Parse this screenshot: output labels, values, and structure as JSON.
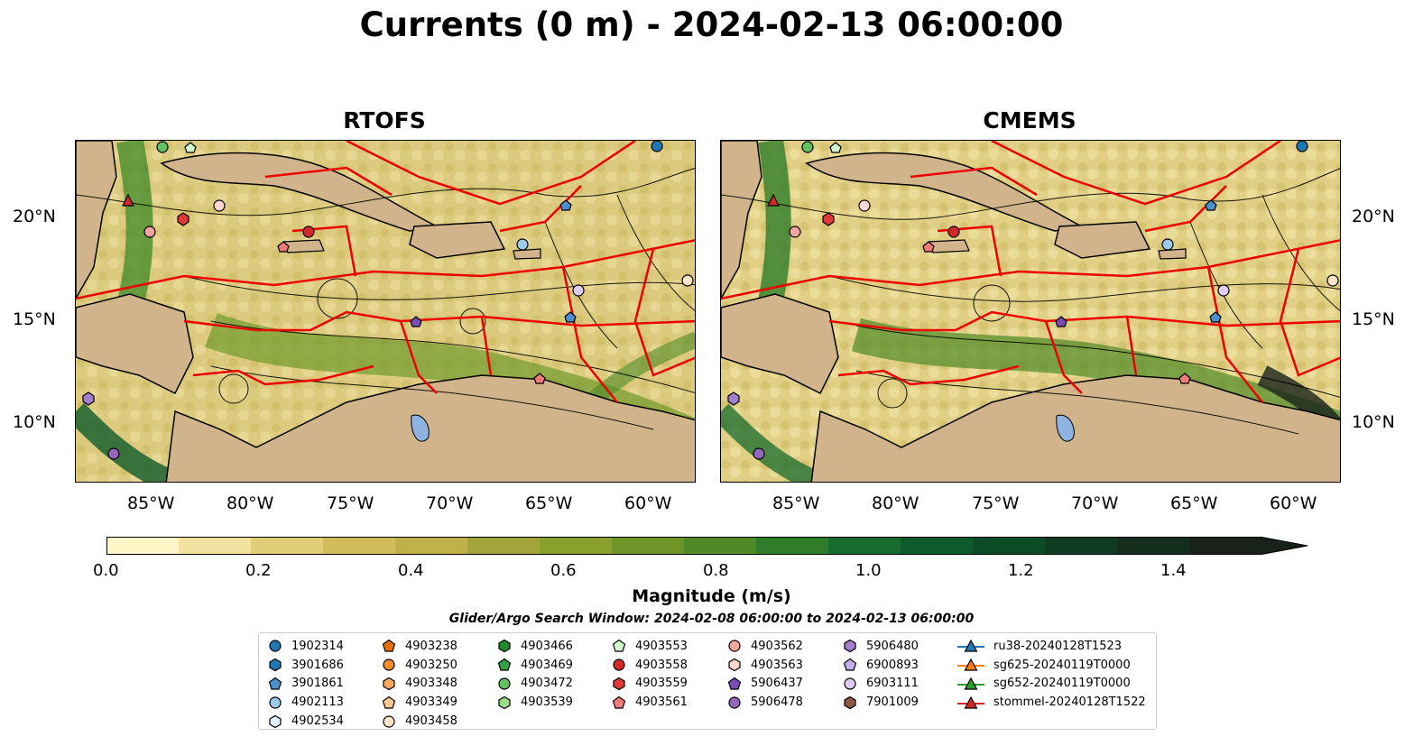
{
  "title": "Currents (0 m) - 2024-02-13 06:00:00",
  "panels": [
    {
      "title": "RTOFS"
    },
    {
      "title": "CMEMS"
    }
  ],
  "lat_labels": [
    "20°N",
    "15°N",
    "10°N"
  ],
  "lon_labels": [
    "85°W",
    "80°W",
    "75°W",
    "70°W",
    "65°W",
    "60°W"
  ],
  "colorbar": {
    "title": "Magnitude (m/s)",
    "tick_labels": [
      "0.0",
      "0.2",
      "0.4",
      "0.6",
      "0.8",
      "1.0",
      "1.2",
      "1.4"
    ],
    "colors": [
      "#fff8c6",
      "#f3e2a0",
      "#e1cc78",
      "#d2bb5a",
      "#bfb04a",
      "#a3a43a",
      "#89a02c",
      "#6f9428",
      "#4f8a26",
      "#2f7d2a",
      "#176b2c",
      "#0f5a2a",
      "#0d4a26",
      "#103c22",
      "#142e1c",
      "#18221a"
    ],
    "range": [
      0,
      1.6
    ]
  },
  "search_window": "Glider/Argo Search Window: 2024-02-08 06:00:00 to 2024-02-13 06:00:00",
  "legend": [
    [
      {
        "label": "1902314",
        "marker": "circle",
        "color": "#1f77b4"
      },
      {
        "label": "3901686",
        "marker": "hexagon",
        "color": "#1f77b4"
      },
      {
        "label": "3901861",
        "marker": "pentagon",
        "color": "#4c8fcf"
      },
      {
        "label": "4902113",
        "marker": "circle",
        "color": "#9ecae9"
      },
      {
        "label": "4902534",
        "marker": "hexagon",
        "color": "#e6f1fb"
      }
    ],
    [
      {
        "label": "4903238",
        "marker": "pentagon",
        "color": "#e6700b"
      },
      {
        "label": "4903250",
        "marker": "circle",
        "color": "#f28c2c"
      },
      {
        "label": "4903348",
        "marker": "hexagon",
        "color": "#f8a95a"
      },
      {
        "label": "4903349",
        "marker": "pentagon",
        "color": "#fcc890"
      },
      {
        "label": "4903458",
        "marker": "circle",
        "color": "#fde6c8"
      }
    ],
    [
      {
        "label": "4903466",
        "marker": "hexagon",
        "color": "#1e8a2e"
      },
      {
        "label": "4903469",
        "marker": "pentagon",
        "color": "#33a047"
      },
      {
        "label": "4903472",
        "marker": "circle",
        "color": "#5fc25f"
      },
      {
        "label": "4903539",
        "marker": "hexagon",
        "color": "#98df8a"
      }
    ],
    [
      {
        "label": "4903553",
        "marker": "pentagon",
        "color": "#d4f7cf"
      },
      {
        "label": "4903558",
        "marker": "circle",
        "color": "#d62728"
      },
      {
        "label": "4903559",
        "marker": "hexagon",
        "color": "#e0393a"
      },
      {
        "label": "4903561",
        "marker": "pentagon",
        "color": "#f07a7a"
      }
    ],
    [
      {
        "label": "4903562",
        "marker": "circle",
        "color": "#f4a3a3"
      },
      {
        "label": "4903563",
        "marker": "hexagon",
        "color": "#fbd4d4"
      },
      {
        "label": "5906437",
        "marker": "pentagon",
        "color": "#7a4bb5"
      },
      {
        "label": "5906478",
        "marker": "circle",
        "color": "#9467bd"
      }
    ],
    [
      {
        "label": "5906480",
        "marker": "hexagon",
        "color": "#a57fcf"
      },
      {
        "label": "6900893",
        "marker": "pentagon",
        "color": "#c5b0e8"
      },
      {
        "label": "6903111",
        "marker": "circle",
        "color": "#e0ccf2"
      },
      {
        "label": "7901009",
        "marker": "hexagon",
        "color": "#8c564b"
      }
    ],
    [
      {
        "label": "ru38-20240128T1523",
        "marker": "triangle-line",
        "color": "#1f77b4"
      },
      {
        "label": "sg625-20240119T0000",
        "marker": "triangle-line",
        "color": "#ff7f0e"
      },
      {
        "label": "sg652-20240119T0000",
        "marker": "triangle-line",
        "color": "#2ca02c"
      },
      {
        "label": "stommel-20240128T1522",
        "marker": "triangle-line",
        "color": "#d62728"
      }
    ]
  ]
}
